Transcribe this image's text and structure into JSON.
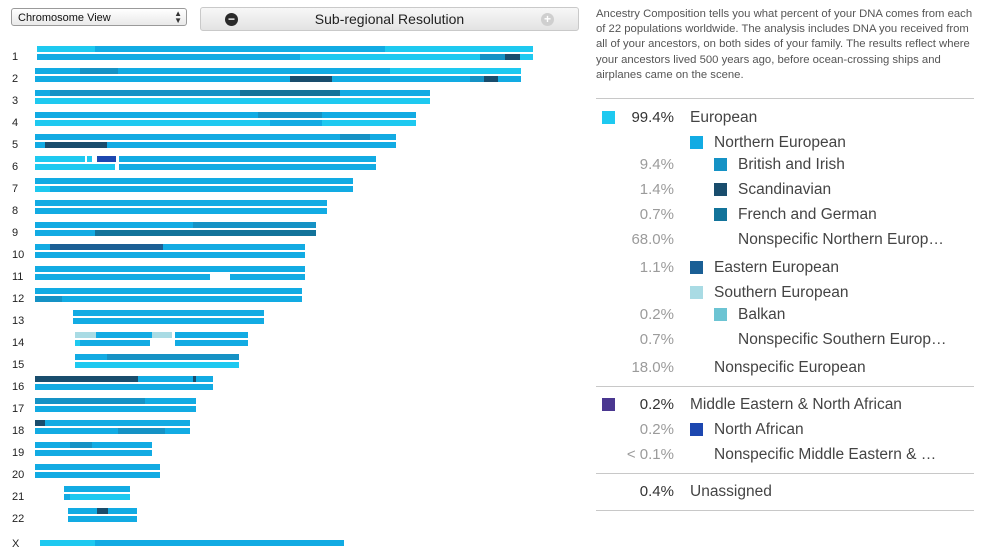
{
  "toolbar": {
    "view_select_value": "Chromosome View",
    "resolution_label": "Sub-regional Resolution"
  },
  "description": "Ancestry Composition tells you what percent of your DNA comes from each of 22 populations worldwide. The analysis includes DNA you received from all of your ancestors, on both sides of your family. The results reflect where your ancestors lived 500 years ago, before ocean-crossing ships and airplanes came on the scene.",
  "colors": {
    "european": "#1ec9f0",
    "northern_european": "#12abe3",
    "british_irish": "#1592c5",
    "scandinavian": "#194d6d",
    "french_german": "#12739a",
    "eastern_european": "#1a5f95",
    "southern_european": "#a9dbe4",
    "balkan": "#6cc4d3",
    "middle_eastern": "#4a3790",
    "north_african": "#1d47b0"
  },
  "composition": [
    {
      "pct": "99.4%",
      "name": "European",
      "swatch": "european",
      "level": 0,
      "bold": true
    },
    {
      "pct": "",
      "name": "Northern European",
      "swatch": "northern_european",
      "level": 1
    },
    {
      "pct": "9.4%",
      "name": "British and Irish",
      "swatch": "british_irish",
      "level": 2
    },
    {
      "pct": "1.4%",
      "name": "Scandinavian",
      "swatch": "scandinavian",
      "level": 2
    },
    {
      "pct": "0.7%",
      "name": "French and German",
      "swatch": "french_german",
      "level": 2
    },
    {
      "pct": "68.0%",
      "name": "Nonspecific Northern Europ…",
      "swatch": "",
      "level": 2
    },
    {
      "pct": "1.1%",
      "name": "Eastern European",
      "swatch": "eastern_european",
      "level": 1
    },
    {
      "pct": "",
      "name": "Southern European",
      "swatch": "southern_european",
      "level": 1
    },
    {
      "pct": "0.2%",
      "name": "Balkan",
      "swatch": "balkan",
      "level": 2
    },
    {
      "pct": "0.7%",
      "name": "Nonspecific Southern Europ…",
      "swatch": "",
      "level": 2
    },
    {
      "pct": "18.0%",
      "name": "Nonspecific European",
      "swatch": "",
      "level": 1
    },
    {
      "pct": "0.2%",
      "name": "Middle Eastern & North African",
      "swatch": "middle_eastern",
      "level": 0,
      "bold": true
    },
    {
      "pct": "0.2%",
      "name": "North African",
      "swatch": "north_african",
      "level": 1
    },
    {
      "pct": "< 0.1%",
      "name": "Nonspecific Middle Eastern & …",
      "swatch": "",
      "level": 1
    },
    {
      "pct": "0.4%",
      "name": "Unassigned",
      "swatch": "",
      "level": 0,
      "bold": true
    }
  ],
  "chromosomes": [
    "1",
    "2",
    "3",
    "4",
    "5",
    "6",
    "7",
    "8",
    "9",
    "10",
    "11",
    "12",
    "13",
    "14",
    "15",
    "16",
    "17",
    "18",
    "19",
    "20",
    "21",
    "22",
    "X"
  ]
}
